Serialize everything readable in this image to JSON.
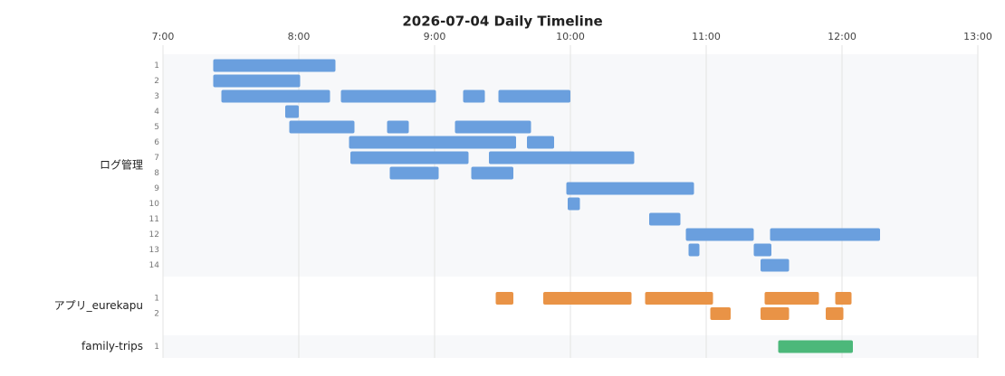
{
  "chart_data": {
    "type": "timeline",
    "title": "2026-07-04 Daily Timeline",
    "xlim": [
      7,
      13
    ],
    "xticks": [
      {
        "value": 7,
        "label": "7:00"
      },
      {
        "value": 8,
        "label": "8:00"
      },
      {
        "value": 9,
        "label": "9:00"
      },
      {
        "value": 10,
        "label": "10:00"
      },
      {
        "value": 11,
        "label": "11:00"
      },
      {
        "value": 12,
        "label": "12:00"
      },
      {
        "value": 13,
        "label": "13:00"
      }
    ],
    "grid": true,
    "groups": [
      {
        "name": "ログ管理",
        "color": "#6a9fde",
        "rows": [
          {
            "label": "1",
            "bars": [
              {
                "start": 7.37,
                "end": 8.27
              }
            ]
          },
          {
            "label": "2",
            "bars": [
              {
                "start": 7.37,
                "end": 8.01
              }
            ]
          },
          {
            "label": "3",
            "bars": [
              {
                "start": 7.43,
                "end": 8.23
              },
              {
                "start": 8.31,
                "end": 9.01
              },
              {
                "start": 9.21,
                "end": 9.37
              },
              {
                "start": 9.47,
                "end": 10.0
              }
            ]
          },
          {
            "label": "4",
            "bars": [
              {
                "start": 7.9,
                "end": 8.0
              }
            ]
          },
          {
            "label": "5",
            "bars": [
              {
                "start": 7.93,
                "end": 8.41
              },
              {
                "start": 8.65,
                "end": 8.81
              },
              {
                "start": 9.15,
                "end": 9.71
              }
            ]
          },
          {
            "label": "6",
            "bars": [
              {
                "start": 8.37,
                "end": 9.6
              },
              {
                "start": 9.68,
                "end": 9.88
              }
            ]
          },
          {
            "label": "7",
            "bars": [
              {
                "start": 8.38,
                "end": 9.25
              },
              {
                "start": 9.4,
                "end": 10.47
              }
            ]
          },
          {
            "label": "8",
            "bars": [
              {
                "start": 8.67,
                "end": 9.03
              },
              {
                "start": 9.27,
                "end": 9.58
              }
            ]
          },
          {
            "label": "9",
            "bars": [
              {
                "start": 9.97,
                "end": 10.91
              }
            ]
          },
          {
            "label": "10",
            "bars": [
              {
                "start": 9.98,
                "end": 10.07
              }
            ]
          },
          {
            "label": "11",
            "bars": [
              {
                "start": 10.58,
                "end": 10.81
              }
            ]
          },
          {
            "label": "12",
            "bars": [
              {
                "start": 10.85,
                "end": 11.35
              },
              {
                "start": 11.47,
                "end": 12.28
              }
            ]
          },
          {
            "label": "13",
            "bars": [
              {
                "start": 10.87,
                "end": 10.95
              },
              {
                "start": 11.35,
                "end": 11.48
              }
            ]
          },
          {
            "label": "14",
            "bars": [
              {
                "start": 11.4,
                "end": 11.61
              }
            ]
          }
        ]
      },
      {
        "name": "アプリ_eurekapu",
        "color": "#e99346",
        "rows": [
          {
            "label": "1",
            "bars": [
              {
                "start": 9.45,
                "end": 9.58
              },
              {
                "start": 9.8,
                "end": 10.45
              },
              {
                "start": 10.55,
                "end": 11.05
              },
              {
                "start": 11.43,
                "end": 11.83
              },
              {
                "start": 11.95,
                "end": 12.07
              }
            ]
          },
          {
            "label": "2",
            "bars": [
              {
                "start": 11.03,
                "end": 11.18
              },
              {
                "start": 11.4,
                "end": 11.61
              },
              {
                "start": 11.88,
                "end": 12.01
              }
            ]
          }
        ]
      },
      {
        "name": "family-trips",
        "color": "#4cb87a",
        "rows": [
          {
            "label": "1",
            "bars": [
              {
                "start": 11.53,
                "end": 12.08
              }
            ]
          }
        ]
      }
    ]
  }
}
